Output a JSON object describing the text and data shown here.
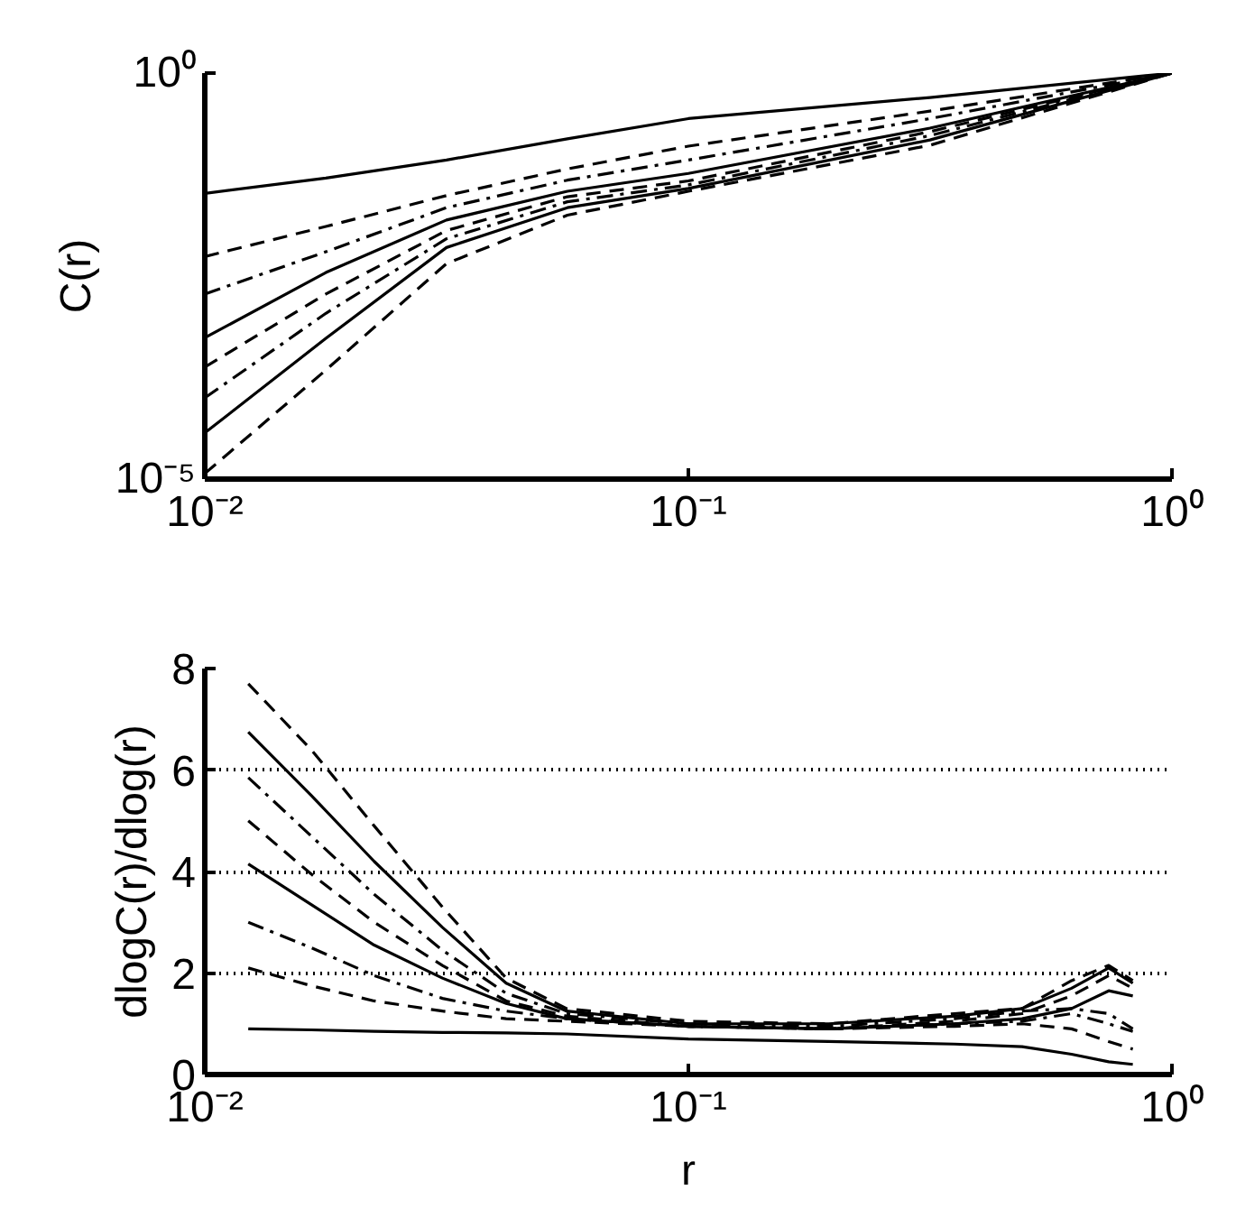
{
  "chart_data": [
    {
      "type": "line",
      "ylabel": "C(r)",
      "log": "xy",
      "grid": false,
      "x": [
        0.01,
        0.0178,
        0.0316,
        0.0562,
        0.1,
        0.316,
        1
      ],
      "xlim": [
        0.01,
        1
      ],
      "xticks": [
        {
          "value": 0.01,
          "label": "10⁻²"
        },
        {
          "value": 0.1,
          "label": "10⁻¹"
        },
        {
          "value": 1,
          "label": "10⁰"
        }
      ],
      "ylim": [
        1e-05,
        1
      ],
      "yticks": [
        {
          "value": 1e-05,
          "label": "10⁻⁵"
        },
        {
          "value": 1,
          "label": "10⁰"
        }
      ],
      "series": [
        {
          "color": "#000000",
          "line_style": "solid",
          "values": [
            0.033,
            0.051,
            0.085,
            0.155,
            0.275,
            0.5,
            1
          ]
        },
        {
          "color": "#000000",
          "line_style": "dashed",
          "values": [
            0.0055,
            0.0129,
            0.031,
            0.066,
            0.126,
            0.34,
            1
          ]
        },
        {
          "color": "#000000",
          "line_style": "dashdot",
          "values": [
            0.0019,
            0.0063,
            0.022,
            0.048,
            0.085,
            0.275,
            1
          ]
        },
        {
          "color": "#000000",
          "line_style": "solid",
          "values": [
            0.00055,
            0.0035,
            0.0155,
            0.035,
            0.058,
            0.21,
            1
          ]
        },
        {
          "color": "#000000",
          "line_style": "dashed",
          "values": [
            0.00024,
            0.0019,
            0.0115,
            0.03,
            0.047,
            0.19,
            1
          ]
        },
        {
          "color": "#000000",
          "line_style": "dashdot",
          "values": [
            0.0001,
            0.0011,
            0.0091,
            0.026,
            0.042,
            0.17,
            1
          ]
        },
        {
          "color": "#000000",
          "line_style": "solid",
          "values": [
            3.7e-05,
            0.00054,
            0.0071,
            0.022,
            0.038,
            0.15,
            1
          ]
        },
        {
          "color": "#000000",
          "line_style": "dashed",
          "values": [
            1.17e-05,
            0.00022,
            0.0045,
            0.0178,
            0.035,
            0.129,
            1
          ]
        }
      ]
    },
    {
      "type": "line",
      "xlabel": "r",
      "ylabel": "dlogC(r)/dlog(r)",
      "log": "x",
      "grid": "y",
      "x": [
        0.0123,
        0.0166,
        0.0224,
        0.031,
        0.042,
        0.056,
        0.1,
        0.195,
        0.355,
        0.49,
        0.62,
        0.74,
        0.83
      ],
      "xlim": [
        0.01,
        1
      ],
      "xticks": [
        {
          "value": 0.01,
          "label": "10⁻²"
        },
        {
          "value": 0.1,
          "label": "10⁻¹"
        },
        {
          "value": 1,
          "label": "10⁰"
        }
      ],
      "ylim": [
        0,
        8
      ],
      "yticks": [
        0,
        2,
        4,
        6,
        8
      ],
      "series": [
        {
          "color": "#000000",
          "line_style": "solid",
          "values": [
            0.9,
            0.88,
            0.85,
            0.83,
            0.82,
            0.8,
            0.7,
            0.65,
            0.6,
            0.55,
            0.4,
            0.25,
            0.2
          ]
        },
        {
          "color": "#000000",
          "line_style": "dashed",
          "values": [
            2.1,
            1.75,
            1.45,
            1.25,
            1.1,
            1.05,
            0.95,
            0.9,
            0.95,
            1.0,
            0.9,
            0.65,
            0.5
          ]
        },
        {
          "color": "#000000",
          "line_style": "dashdot",
          "values": [
            3.0,
            2.5,
            1.95,
            1.5,
            1.25,
            1.1,
            0.95,
            0.9,
            1.0,
            1.05,
            1.2,
            1.0,
            0.85
          ]
        },
        {
          "color": "#000000",
          "line_style": "solid",
          "values": [
            4.15,
            3.35,
            2.55,
            1.9,
            1.4,
            1.1,
            0.95,
            0.9,
            1.0,
            1.1,
            1.3,
            1.65,
            1.55
          ]
        },
        {
          "color": "#000000",
          "line_style": "dashed",
          "values": [
            5.0,
            3.95,
            3.0,
            2.15,
            1.45,
            1.15,
            0.95,
            0.9,
            1.05,
            1.2,
            1.55,
            1.95,
            1.7
          ]
        },
        {
          "color": "#000000",
          "line_style": "dashdot",
          "values": [
            5.85,
            4.7,
            3.55,
            2.45,
            1.6,
            1.2,
            1.0,
            0.95,
            1.1,
            1.25,
            1.3,
            1.2,
            0.9
          ]
        },
        {
          "color": "#000000",
          "line_style": "solid",
          "values": [
            6.75,
            5.5,
            4.2,
            2.9,
            1.8,
            1.25,
            1.0,
            1.0,
            1.15,
            1.3,
            1.7,
            2.1,
            1.8
          ]
        },
        {
          "color": "#000000",
          "line_style": "dashed",
          "values": [
            7.7,
            6.4,
            4.9,
            3.3,
            1.9,
            1.3,
            1.05,
            1.0,
            1.2,
            1.3,
            1.85,
            2.15,
            1.85
          ]
        }
      ]
    }
  ]
}
